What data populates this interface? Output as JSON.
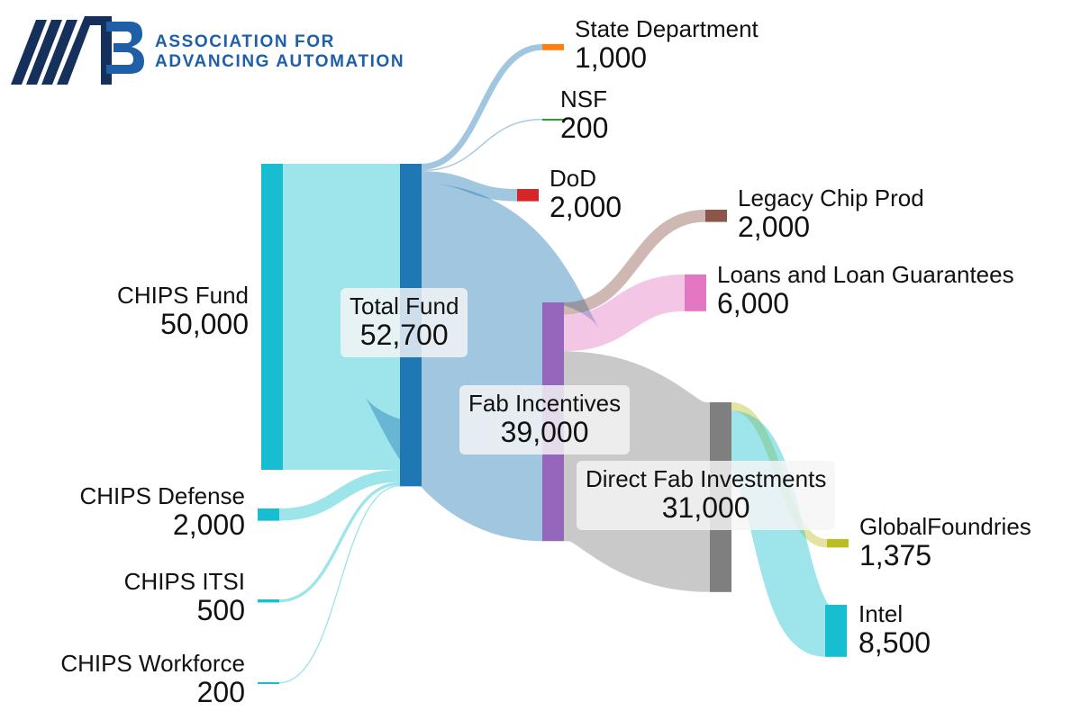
{
  "logo": {
    "mark": "A3",
    "line1": "ASSOCIATION FOR",
    "line2": "ADVANCING AUTOMATION",
    "colors": {
      "navy": "#15305a",
      "blue": "#1e5fa8"
    }
  },
  "nodes": [
    {
      "id": "chips_fund",
      "name": "CHIPS Fund",
      "value": "50,000",
      "color": "#17becf"
    },
    {
      "id": "chips_defense",
      "name": "CHIPS Defense",
      "value": "2,000",
      "color": "#17becf"
    },
    {
      "id": "chips_itsi",
      "name": "CHIPS ITSI",
      "value": "500",
      "color": "#17becf"
    },
    {
      "id": "chips_workforce",
      "name": "CHIPS Workforce",
      "value": "200",
      "color": "#17becf"
    },
    {
      "id": "total_fund",
      "name": "Total Fund",
      "value": "52,700",
      "color": "#1f77b4"
    },
    {
      "id": "state_department",
      "name": "State Department",
      "value": "1,000",
      "color": "#ff7f0e"
    },
    {
      "id": "nsf",
      "name": "NSF",
      "value": "200",
      "color": "#2ca02c"
    },
    {
      "id": "dod",
      "name": "DoD",
      "value": "2,000",
      "color": "#d62728"
    },
    {
      "id": "fab_incentives",
      "name": "Fab Incentives",
      "value": "39,000",
      "color": "#9467bd"
    },
    {
      "id": "legacy_chip_prod",
      "name": "Legacy Chip Prod",
      "value": "2,000",
      "color": "#8c564b"
    },
    {
      "id": "loans",
      "name": "Loans and Loan Guarantees",
      "value": "6,000",
      "color": "#e377c2"
    },
    {
      "id": "direct_fab",
      "name": "Direct Fab Investments",
      "value": "31,000",
      "color": "#7f7f7f"
    },
    {
      "id": "globalfoundries",
      "name": "GlobalFoundries",
      "value": "1,375",
      "color": "#bcbd22"
    },
    {
      "id": "intel",
      "name": "Intel",
      "value": "8,500",
      "color": "#17becf"
    }
  ],
  "links": [
    {
      "source": "chips_fund",
      "target": "total_fund",
      "value": 50000,
      "color": "#17becf"
    },
    {
      "source": "chips_defense",
      "target": "total_fund",
      "value": 2000,
      "color": "#17becf"
    },
    {
      "source": "chips_itsi",
      "target": "total_fund",
      "value": 500,
      "color": "#17becf"
    },
    {
      "source": "chips_workforce",
      "target": "total_fund",
      "value": 200,
      "color": "#17becf"
    },
    {
      "source": "total_fund",
      "target": "state_department",
      "value": 1000,
      "color": "#1f77b4"
    },
    {
      "source": "total_fund",
      "target": "nsf",
      "value": 200,
      "color": "#1f77b4"
    },
    {
      "source": "total_fund",
      "target": "dod",
      "value": 2000,
      "color": "#1f77b4"
    },
    {
      "source": "total_fund",
      "target": "fab_incentives",
      "value": 39000,
      "color": "#1f77b4"
    },
    {
      "source": "fab_incentives",
      "target": "legacy_chip_prod",
      "value": 2000,
      "color": "#8c564b"
    },
    {
      "source": "fab_incentives",
      "target": "loans",
      "value": 6000,
      "color": "#e377c2"
    },
    {
      "source": "fab_incentives",
      "target": "direct_fab",
      "value": 31000,
      "color": "#7f7f7f"
    },
    {
      "source": "direct_fab",
      "target": "globalfoundries",
      "value": 1375,
      "color": "#bcbd22"
    },
    {
      "source": "direct_fab",
      "target": "intel",
      "value": 8500,
      "color": "#17becf"
    }
  ]
}
